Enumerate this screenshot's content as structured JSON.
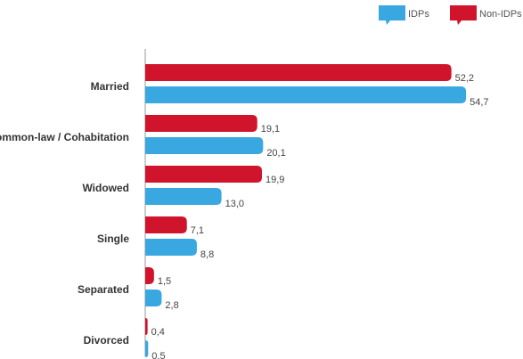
{
  "chart_data": {
    "type": "hbar",
    "categories": [
      "Married",
      "Common-law / Cohabitation",
      "Widowed",
      "Single",
      "Separated",
      "Divorced"
    ],
    "series": [
      {
        "name": "Non-IDPs",
        "color": "#d0142c",
        "values": [
          52.2,
          19.1,
          19.9,
          7.1,
          1.5,
          0.4
        ],
        "value_labels": [
          "52,2",
          "19,1",
          "19,9",
          "7,1",
          "1,5",
          "0,4"
        ]
      },
      {
        "name": "IDPs",
        "color": "#3aa8e0",
        "values": [
          54.7,
          20.1,
          13.0,
          8.8,
          2.8,
          0.5
        ],
        "value_labels": [
          "54,7",
          "20,1",
          "13,0",
          "8,8",
          "2,8",
          "0,5"
        ]
      }
    ],
    "xlim": [
      0,
      60
    ],
    "legend": "top-right"
  }
}
